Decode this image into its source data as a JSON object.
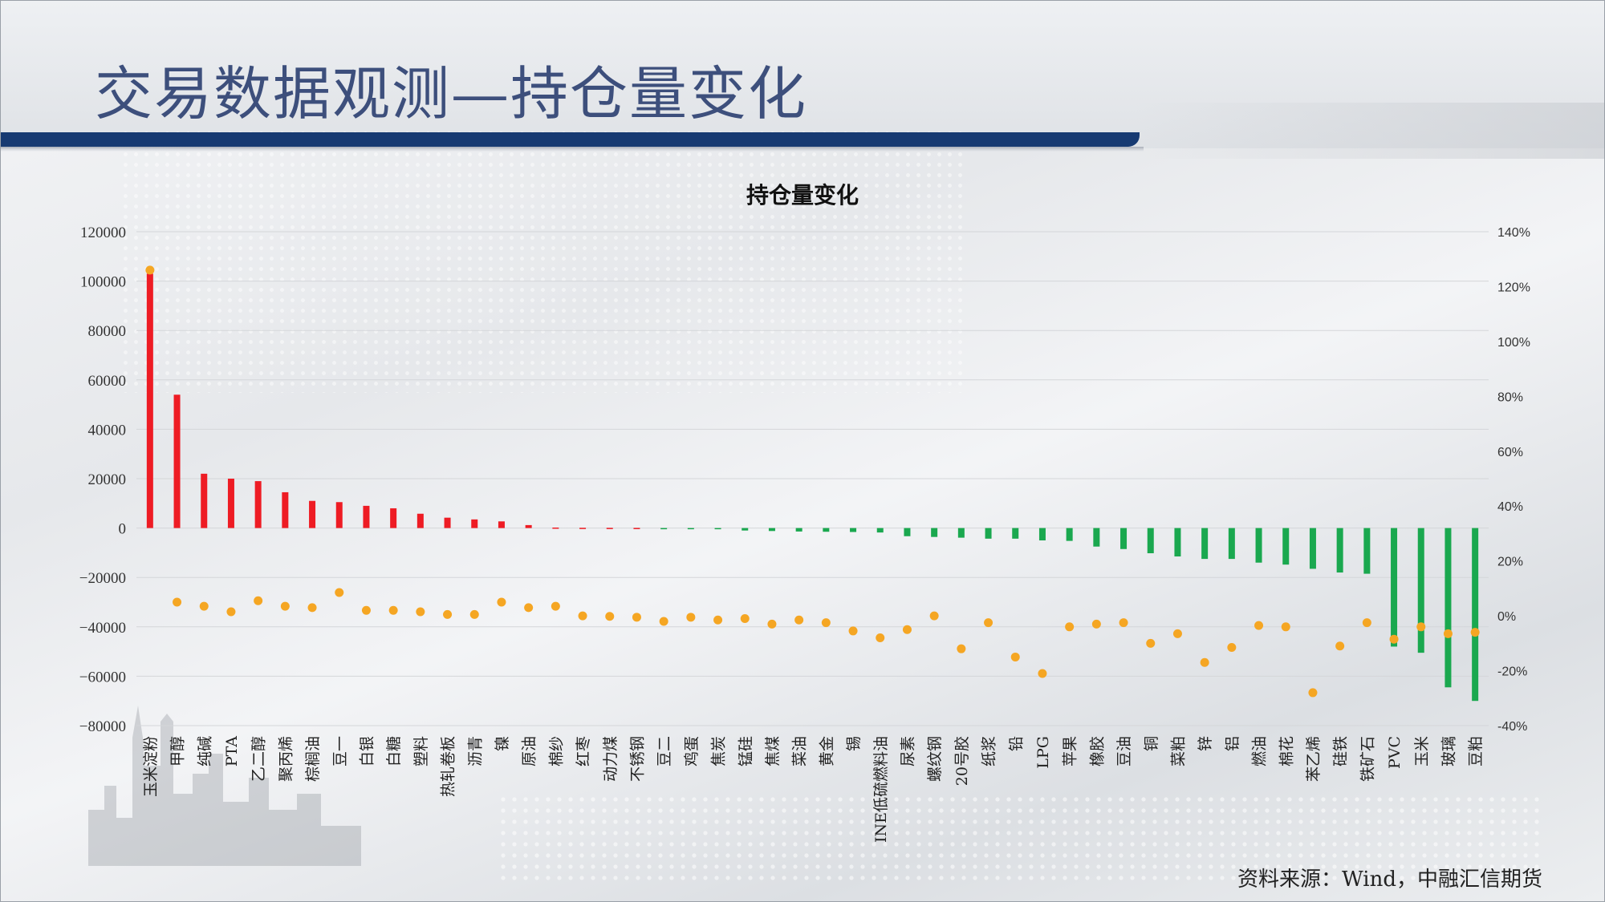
{
  "slide": {
    "title": "交易数据观测—持仓量变化",
    "source": "资料来源：Wind，中融汇信期货"
  },
  "colors": {
    "title": "#3d4f7c",
    "title_bar": "#173a72",
    "bar_positive": "#ee1c24",
    "bar_negative": "#1aa84f",
    "dot": "#f5a623"
  },
  "chart_data": {
    "type": "bar",
    "title": "持仓量变化",
    "left_axis": {
      "ylim": [
        -80000,
        120000
      ],
      "ticks": [
        -80000,
        -60000,
        -40000,
        -20000,
        0,
        20000,
        40000,
        60000,
        80000,
        100000,
        120000
      ],
      "tick_labels": [
        "−80000",
        "−60000",
        "−40000",
        "−20000",
        "0",
        "20000",
        "40000",
        "60000",
        "80000",
        "100000",
        "120000"
      ]
    },
    "right_axis": {
      "ylim": [
        -40,
        140
      ],
      "ticks": [
        -40,
        -20,
        0,
        20,
        40,
        60,
        80,
        100,
        120,
        140
      ],
      "tick_labels": [
        "-40%",
        "-20%",
        "0%",
        "20%",
        "40%",
        "60%",
        "80%",
        "100%",
        "120%",
        "140%"
      ]
    },
    "grid": true,
    "categories": [
      "玉米淀粉",
      "甲醇",
      "纯碱",
      "PTA",
      "乙二醇",
      "聚丙烯",
      "棕榈油",
      "豆一",
      "白银",
      "白糖",
      "塑料",
      "热轧卷板",
      "沥青",
      "镍",
      "原油",
      "棉纱",
      "红枣",
      "动力煤",
      "不锈钢",
      "豆二",
      "鸡蛋",
      "焦炭",
      "锰硅",
      "焦煤",
      "菜油",
      "黄金",
      "锡",
      "INE低硫燃料油",
      "尿素",
      "螺纹钢",
      "20号胶",
      "纸浆",
      "铅",
      "LPG",
      "苹果",
      "橡胶",
      "豆油",
      "铜",
      "菜粕",
      "锌",
      "铝",
      "燃油",
      "棉花",
      "苯乙烯",
      "硅铁",
      "铁矿石",
      "PVC",
      "玉米",
      "玻璃",
      "豆粕"
    ],
    "series": [
      {
        "axis": "left",
        "kind": "bar",
        "values": [
          103000,
          54000,
          22000,
          20000,
          19000,
          14500,
          11000,
          10500,
          9000,
          8000,
          5800,
          4200,
          3500,
          2700,
          1200,
          200,
          100,
          80,
          60,
          -100,
          -150,
          -400,
          -1000,
          -1200,
          -1400,
          -1500,
          -1600,
          -1800,
          -3300,
          -3600,
          -3900,
          -4300,
          -4300,
          -5000,
          -5200,
          -7500,
          -8500,
          -10200,
          -11500,
          -12500,
          -12500,
          -14000,
          -14800,
          -16500,
          -18000,
          -18500,
          -48000,
          -50500,
          -64500,
          -70000
        ]
      },
      {
        "axis": "right",
        "kind": "scatter",
        "values": [
          126,
          5,
          3.5,
          1.5,
          5.5,
          3.5,
          3,
          8.5,
          2,
          2,
          1.5,
          0.5,
          0.5,
          5,
          3,
          3.5,
          0,
          -0.2,
          -0.5,
          -2,
          -0.5,
          -1.5,
          -1,
          -3,
          -1.5,
          -2.5,
          -5.5,
          -8,
          -5,
          0,
          -12,
          -2.5,
          -15,
          -21,
          -4,
          -3,
          -2.5,
          -10,
          -6.5,
          -17,
          -11.5,
          -3.5,
          -4,
          -28,
          -11,
          -2.5,
          -8.5,
          -4,
          -6.5,
          -6
        ]
      }
    ]
  }
}
